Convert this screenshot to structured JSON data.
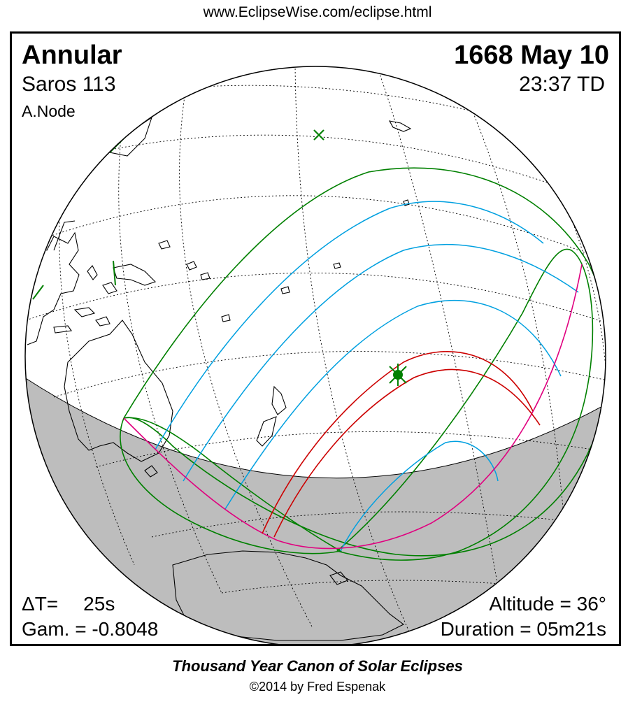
{
  "header": {
    "url": "www.EclipseWise.com/eclipse.html"
  },
  "eclipse": {
    "type": "Annular",
    "saros": "Saros 113",
    "node": "A.Node",
    "date": "1668 May 10",
    "time": "23:37 TD",
    "delta_t_label": "ΔT=",
    "delta_t_value": "25s",
    "gamma": "Gam. = -0.8048",
    "altitude": "Altitude = 36°",
    "duration": "Duration = 05m21s"
  },
  "footer": {
    "canon": "Thousand Year Canon of Solar Eclipses",
    "copyright": "©2014 by Fred Espenak"
  },
  "colors": {
    "penumbra": "#008000",
    "umbra": "#cc0000",
    "hourly": "#00a0e0",
    "rise_set": "#e0007f",
    "night": "#bdbdbd",
    "coast": "#000000"
  }
}
